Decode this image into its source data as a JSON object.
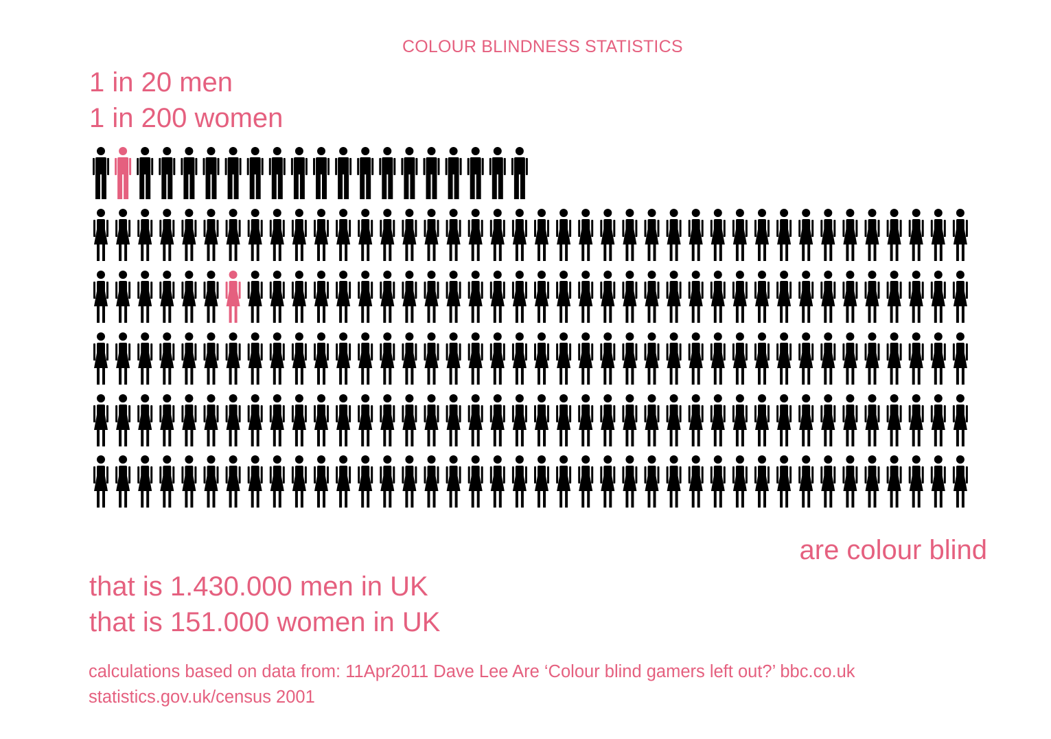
{
  "title": "COLOUR BLINDNESS STATISTICS",
  "stats": {
    "men": "1 in 20 men",
    "women": "1 in 200 women"
  },
  "conclusion": "are colour blind",
  "uk": {
    "men": "that is 1.430.000 men in UK",
    "women": "that is 151.000 women in UK"
  },
  "source": {
    "line1": "calculations based on data from: 11Apr2011 Dave Lee Are ‘Colour blind gamers left out?’ bbc.co.uk",
    "line2": "statistics.gov.uk/census 2001"
  },
  "colors": {
    "highlight": "#e5607f",
    "base": "#000000"
  },
  "chart_data": {
    "type": "pictogram",
    "series": [
      {
        "category": "men",
        "total": 20,
        "highlighted": 1,
        "highlight_index": 1,
        "icon": "man-icon"
      },
      {
        "category": "women",
        "total": 200,
        "highlighted": 1,
        "highlight_index": 6,
        "icon": "woman-icon"
      }
    ]
  }
}
